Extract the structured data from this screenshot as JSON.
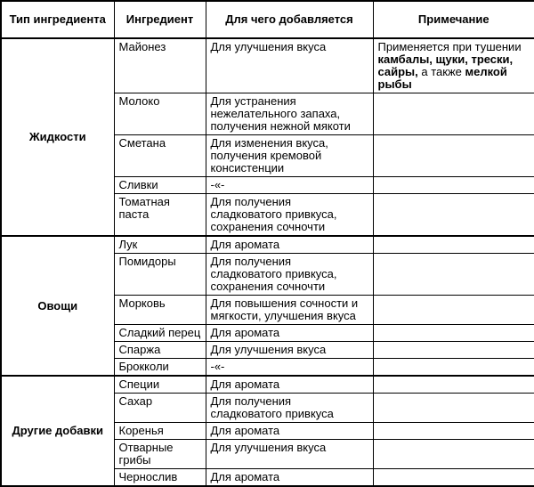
{
  "table": {
    "headers": {
      "type": "Тип ингредиента",
      "ingredient": "Ингредиент",
      "purpose": "Для чего добавляется",
      "note": "Примечание"
    },
    "groups": [
      {
        "type": "Жидкости",
        "rows": [
          {
            "ingredient": "Майонез",
            "purpose": "Для улучшения вкуса",
            "note": {
              "pre": "Применяется при тушении ",
              "bold1": "камбалы, щуки, трески, сайры,",
              "mid": " а также ",
              "bold2": "мелкой рыбы"
            }
          },
          {
            "ingredient": "Молоко",
            "purpose": "Для устранения\nнежелательного запаха,\nполучения нежной мякоти"
          },
          {
            "ingredient": "Сметана",
            "purpose": "Для изменения вкуса,\nполучения кремовой\nконсистенции"
          },
          {
            "ingredient": "Сливки",
            "purpose": "-«-"
          },
          {
            "ingredient": "Томатная\nпаста",
            "purpose": "Для получения\nсладковатого привкуса,\nсохранения сочночти"
          }
        ]
      },
      {
        "type": "Овощи",
        "rows": [
          {
            "ingredient": "Лук",
            "purpose": "Для аромата"
          },
          {
            "ingredient": "Помидоры",
            "purpose": "Для получения\nсладковатого привкуса,\nсохранения сочночти"
          },
          {
            "ingredient": "Морковь",
            "purpose": "Для повышения сочности и\nмягкости, улучшения вкуса"
          },
          {
            "ingredient": "Сладкий перец",
            "purpose": "Для аромата"
          },
          {
            "ingredient": "Спаржа",
            "purpose": "Для улучшения вкуса"
          },
          {
            "ingredient": "Брокколи",
            "purpose": "-«-"
          }
        ]
      },
      {
        "type": "Другие добавки",
        "rows": [
          {
            "ingredient": "Специи",
            "purpose": "Для аромата"
          },
          {
            "ingredient": "Сахар",
            "purpose": "Для получения\nсладковатого привкуса"
          },
          {
            "ingredient": "Коренья",
            "purpose": "Для аромата"
          },
          {
            "ingredient": "Отварные\nгрибы",
            "purpose": "Для улучшения вкуса"
          },
          {
            "ingredient": "Чернослив",
            "purpose": "Для аромата"
          }
        ]
      }
    ]
  }
}
